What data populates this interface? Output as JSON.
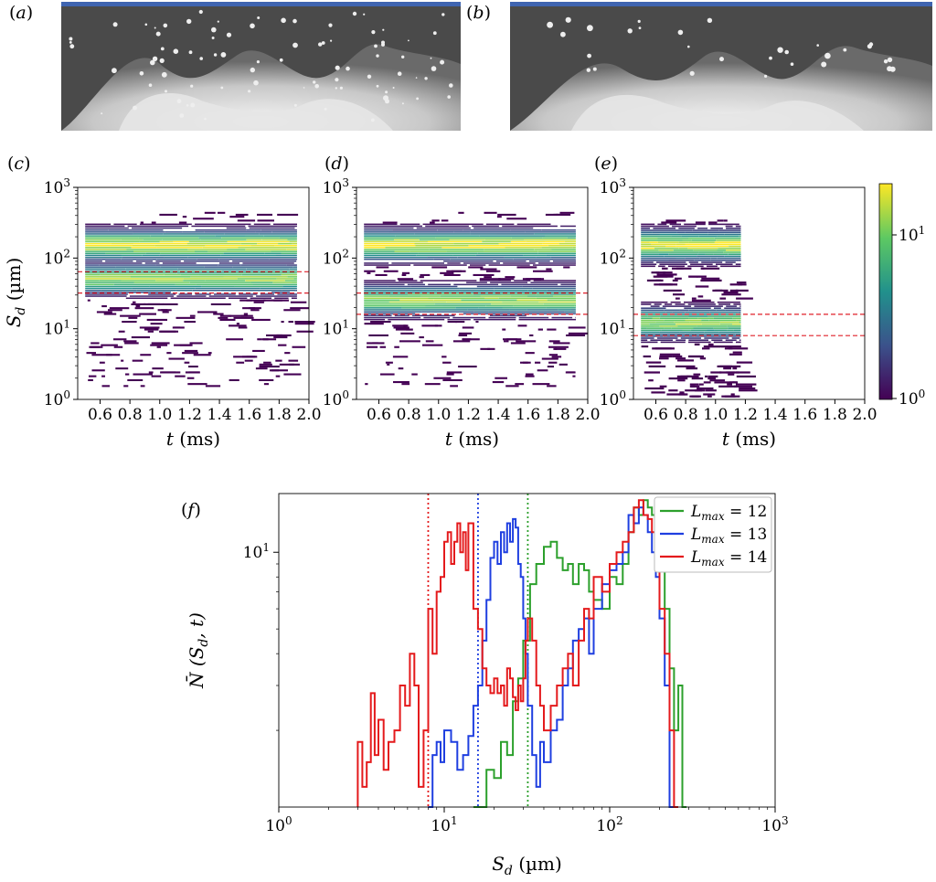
{
  "panels": {
    "a": {
      "letter": "a"
    },
    "b": {
      "letter": "b"
    },
    "c": {
      "letter": "c"
    },
    "d": {
      "letter": "d"
    },
    "e": {
      "letter": "e"
    },
    "f": {
      "letter": "f"
    }
  },
  "colors": {
    "green": "#2ca02c",
    "blue": "#1f3fe0",
    "red": "#e41a1c",
    "guide_red": "#e0202a",
    "photo_bg": "#4a4a4a",
    "photo_top": "#3f64b0",
    "viridis": [
      "#440154",
      "#3b528b",
      "#21918c",
      "#5ec962",
      "#fde725"
    ]
  },
  "heatmap_axes": {
    "xlabel_var": "t",
    "xlabel_unit": " (ms)",
    "ylabel_var": "S",
    "ylabel_sub": "d",
    "ylabel_unit": " (µm)",
    "xticks": [
      "0.6",
      "0.8",
      "1.0",
      "1.2",
      "1.4",
      "1.6",
      "1.8",
      "2.0"
    ],
    "yticks_exp": [
      "0",
      "1",
      "2",
      "3"
    ],
    "ytick_base": "10"
  },
  "colorbar": {
    "ticks_exp": [
      "0",
      "1"
    ],
    "base": "10",
    "scale": "log"
  },
  "chart_data": [
    {
      "type": "heatmap",
      "panel": "c",
      "xlim": [
        0.45,
        2.0
      ],
      "ylim": [
        1,
        1000
      ],
      "yscale": "log",
      "data_t_range": [
        0.5,
        1.92
      ],
      "size_range": [
        1.5,
        450
      ],
      "peak_modes_um": [
        150,
        50
      ],
      "guide_lines_um": [
        32,
        64
      ]
    },
    {
      "type": "heatmap",
      "panel": "d",
      "xlim": [
        0.45,
        2.0
      ],
      "ylim": [
        1,
        1000
      ],
      "yscale": "log",
      "data_t_range": [
        0.5,
        1.92
      ],
      "size_range": [
        1.5,
        450
      ],
      "peak_modes_um": [
        150,
        25
      ],
      "guide_lines_um": [
        16,
        32
      ]
    },
    {
      "type": "heatmap",
      "panel": "e",
      "xlim": [
        0.45,
        2.0
      ],
      "ylim": [
        1,
        1000
      ],
      "yscale": "log",
      "data_t_range": [
        0.5,
        1.17
      ],
      "size_range": [
        1.0,
        350
      ],
      "peak_modes_um": [
        150,
        12
      ],
      "guide_lines_um": [
        8,
        16
      ]
    },
    {
      "type": "line",
      "panel": "f",
      "xscale": "log",
      "yscale": "log",
      "xlim": [
        1,
        1000
      ],
      "ylim": [
        1,
        17
      ],
      "xlabel_var": "S",
      "xlabel_sub": "d",
      "xlabel_unit": " (µm)",
      "ylabel_text": "N̄ (S",
      "ylabel_sub": "d",
      "ylabel_tail": ", t)",
      "xticks_exp": [
        "0",
        "1",
        "2",
        "3"
      ],
      "ytick_exp": "1",
      "tick_base": "10",
      "legend_position": "top-right",
      "series": [
        {
          "name_var": "L",
          "name_sub": "max",
          "name_val": " = 12",
          "color_key": "green",
          "vline_x": 32,
          "x": [
            15,
            18,
            20,
            22,
            24,
            26,
            28,
            30,
            33,
            36,
            40,
            44,
            48,
            52,
            56,
            60,
            65,
            70,
            75,
            80,
            90,
            100,
            110,
            120,
            130,
            140,
            150,
            160,
            170,
            180,
            190,
            200,
            215,
            230,
            245,
            260,
            275
          ],
          "y": [
            1.0,
            1.4,
            1.3,
            1.8,
            1.6,
            2.6,
            3.2,
            4.5,
            7.5,
            9.0,
            10.5,
            11.0,
            9.5,
            8.5,
            9.0,
            7.5,
            9.0,
            8.5,
            7.0,
            6.5,
            6.0,
            8.0,
            7.5,
            9.0,
            12.0,
            15.0,
            14.0,
            16.0,
            15.0,
            14.0,
            12.5,
            10.0,
            6.0,
            3.5,
            2.0,
            3.0,
            1.0
          ]
        },
        {
          "name_var": "L",
          "name_sub": "max",
          "name_val": " = 13",
          "color_key": "blue",
          "vline_x": 16,
          "x": [
            8,
            8.5,
            9,
            9.5,
            10,
            11,
            12,
            13,
            14,
            15,
            16,
            17,
            18,
            19,
            20,
            21,
            22,
            23,
            24,
            25,
            26,
            27,
            28,
            29,
            30,
            31,
            32,
            34,
            36,
            38,
            40,
            44,
            48,
            52,
            56,
            60,
            65,
            70,
            75,
            80,
            90,
            100,
            110,
            120,
            130,
            140,
            150,
            160,
            170,
            180,
            190,
            200,
            215,
            230
          ],
          "y": [
            1.0,
            1.6,
            1.8,
            1.5,
            2.0,
            1.8,
            1.4,
            1.6,
            1.9,
            2.5,
            3.0,
            4.5,
            6.5,
            9.5,
            11.0,
            9.0,
            12.0,
            10.0,
            13.0,
            11.0,
            13.5,
            12.5,
            9.0,
            8.0,
            5.5,
            4.0,
            2.5,
            1.6,
            1.2,
            1.8,
            1.5,
            2.0,
            2.2,
            3.0,
            3.5,
            4.5,
            5.0,
            5.5,
            4.0,
            6.0,
            7.5,
            8.5,
            9.0,
            10.0,
            14.0,
            13.0,
            15.0,
            14.0,
            12.0,
            10.0,
            8.0,
            5.5,
            3.0,
            1.0
          ]
        },
        {
          "name_var": "L",
          "name_sub": "max",
          "name_val": " = 14",
          "color_key": "red",
          "vline_x": 8,
          "x": [
            3,
            3.2,
            3.4,
            3.6,
            3.8,
            4.0,
            4.3,
            4.6,
            5.0,
            5.4,
            5.8,
            6.2,
            6.6,
            7.0,
            7.5,
            8.0,
            8.5,
            9.0,
            9.5,
            10,
            10.5,
            11,
            11.5,
            12,
            12.5,
            13,
            13.5,
            14,
            15,
            16,
            17,
            18,
            19,
            20,
            21,
            22,
            23,
            24,
            25,
            26,
            27,
            28,
            29,
            30,
            31,
            32,
            34,
            36,
            38,
            40,
            44,
            48,
            52,
            56,
            60,
            65,
            70,
            75,
            80,
            90,
            100,
            110,
            120,
            130,
            140,
            150,
            160,
            170,
            180,
            190,
            200,
            215,
            230,
            245
          ],
          "y": [
            1.8,
            1.2,
            1.5,
            2.8,
            1.6,
            2.2,
            1.4,
            1.8,
            2.0,
            3.0,
            2.5,
            4.0,
            3.0,
            1.2,
            2.0,
            6.0,
            4.0,
            7.0,
            8.0,
            11.0,
            12.0,
            9.0,
            11.0,
            13.0,
            10.0,
            12.0,
            8.5,
            13.0,
            6.0,
            5.0,
            3.5,
            3.0,
            2.8,
            3.2,
            2.8,
            3.0,
            2.5,
            3.5,
            3.2,
            2.7,
            2.4,
            3.0,
            2.6,
            3.2,
            4.5,
            5.5,
            4.5,
            3.0,
            2.5,
            2.0,
            2.5,
            3.0,
            3.5,
            4.0,
            3.0,
            4.5,
            6.0,
            5.5,
            8.0,
            7.0,
            9.0,
            10.0,
            11.0,
            12.0,
            15.0,
            16.0,
            14.0,
            13.5,
            12.0,
            10.0,
            6.0,
            4.0,
            2.0,
            1.0
          ]
        }
      ]
    }
  ]
}
